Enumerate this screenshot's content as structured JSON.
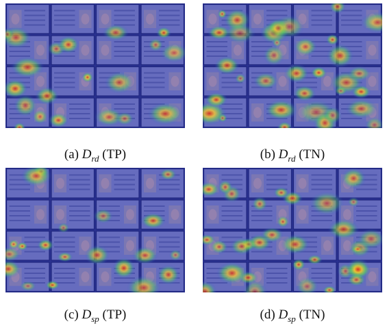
{
  "figure": {
    "panels": [
      {
        "label": "(a)",
        "symbol": "D",
        "subscript": "rd",
        "tag": "(TP)"
      },
      {
        "label": "(b)",
        "symbol": "D",
        "subscript": "rd",
        "tag": "(TN)"
      },
      {
        "label": "(c)",
        "symbol": "D",
        "subscript": "sp",
        "tag": "(TP)"
      },
      {
        "label": "(d)",
        "symbol": "D",
        "subscript": "sp",
        "tag": "(TN)"
      }
    ]
  }
}
